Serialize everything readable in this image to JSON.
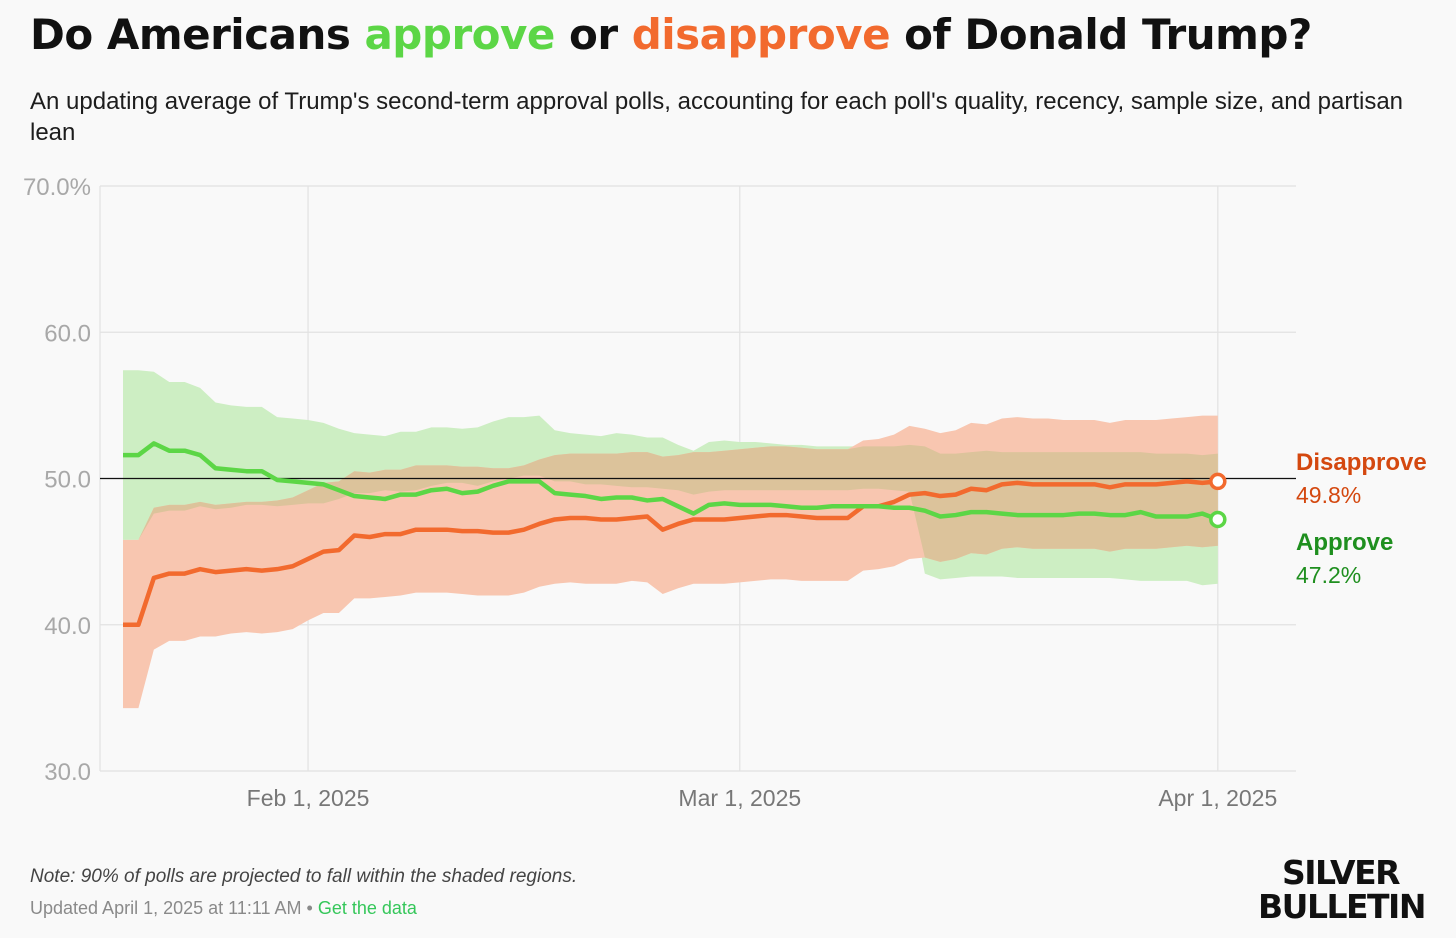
{
  "header": {
    "title_parts": [
      "Do Americans ",
      "approve",
      " or ",
      "disapprove",
      " of Donald Trump?"
    ],
    "subtitle": "An updating average of Trump's second-term approval polls, accounting for each poll's quality, recency, sample size, and partisan lean"
  },
  "footer": {
    "note": "Note: 90% of polls are projected to fall within the shaded regions.",
    "updated": "Updated April 1, 2025 at 11:11 AM",
    "separator": "•",
    "get_data": "Get the data",
    "logo_line1": "SILVER",
    "logo_line2": "BULLETIN"
  },
  "colors": {
    "approve": "#5cd646",
    "approve_label": "#1f8f1f",
    "approve_band": "#cdeec3",
    "disapprove": "#f26a2e",
    "disapprove_label": "#d4480f",
    "disapprove_band": "#f8c6b0",
    "overlap_band": "#dcc39b",
    "background": "#f9f9f9"
  },
  "chart_data": {
    "type": "line",
    "x_dates": [
      "2025-01-20",
      "2025-01-21",
      "2025-01-22",
      "2025-01-23",
      "2025-01-24",
      "2025-01-25",
      "2025-01-26",
      "2025-01-27",
      "2025-01-28",
      "2025-01-29",
      "2025-01-30",
      "2025-01-31",
      "2025-02-01",
      "2025-02-02",
      "2025-02-03",
      "2025-02-04",
      "2025-02-05",
      "2025-02-06",
      "2025-02-07",
      "2025-02-08",
      "2025-02-09",
      "2025-02-10",
      "2025-02-11",
      "2025-02-12",
      "2025-02-13",
      "2025-02-14",
      "2025-02-15",
      "2025-02-16",
      "2025-02-17",
      "2025-02-18",
      "2025-02-19",
      "2025-02-20",
      "2025-02-21",
      "2025-02-22",
      "2025-02-23",
      "2025-02-24",
      "2025-02-25",
      "2025-02-26",
      "2025-02-27",
      "2025-02-28",
      "2025-03-01",
      "2025-03-02",
      "2025-03-03",
      "2025-03-04",
      "2025-03-05",
      "2025-03-06",
      "2025-03-07",
      "2025-03-08",
      "2025-03-09",
      "2025-03-10",
      "2025-03-11",
      "2025-03-12",
      "2025-03-13",
      "2025-03-14",
      "2025-03-15",
      "2025-03-16",
      "2025-03-17",
      "2025-03-18",
      "2025-03-19",
      "2025-03-20",
      "2025-03-21",
      "2025-03-22",
      "2025-03-23",
      "2025-03-24",
      "2025-03-25",
      "2025-03-26",
      "2025-03-27",
      "2025-03-28",
      "2025-03-29",
      "2025-03-30",
      "2025-03-31",
      "2025-04-01"
    ],
    "series": [
      {
        "name": "Approve",
        "values": [
          51.6,
          51.6,
          52.4,
          51.9,
          51.9,
          51.6,
          50.7,
          50.6,
          50.5,
          50.5,
          49.9,
          49.8,
          49.7,
          49.6,
          49.2,
          48.8,
          48.7,
          48.6,
          48.9,
          48.9,
          49.2,
          49.3,
          49.0,
          49.1,
          49.5,
          49.8,
          49.8,
          49.8,
          49.0,
          48.9,
          48.8,
          48.6,
          48.7,
          48.7,
          48.5,
          48.6,
          48.1,
          47.6,
          48.2,
          48.3,
          48.2,
          48.2,
          48.2,
          48.1,
          48.0,
          48.0,
          48.1,
          48.1,
          48.1,
          48.1,
          48.0,
          48.0,
          47.8,
          47.4,
          47.5,
          47.7,
          47.7,
          47.6,
          47.5,
          47.5,
          47.5,
          47.5,
          47.6,
          47.6,
          47.5,
          47.5,
          47.7,
          47.4,
          47.4,
          47.4,
          47.6,
          47.2
        ],
        "lower": [
          45.8,
          45.8,
          47.6,
          47.8,
          47.8,
          48.1,
          47.9,
          48.0,
          48.2,
          48.2,
          48.1,
          48.2,
          48.3,
          48.3,
          48.6,
          49.0,
          49.0,
          49.2,
          49.1,
          49.2,
          49.5,
          49.7,
          49.7,
          49.5,
          49.8,
          50.0,
          50.2,
          50.2,
          49.8,
          49.8,
          49.6,
          49.6,
          49.5,
          49.4,
          49.4,
          49.3,
          49.2,
          48.9,
          49.1,
          49.2,
          49.2,
          49.2,
          49.2,
          49.2,
          49.2,
          49.2,
          49.2,
          49.2,
          49.3,
          49.3,
          49.2,
          49.1,
          43.5,
          43.1,
          43.2,
          43.3,
          43.3,
          43.3,
          43.2,
          43.2,
          43.2,
          43.2,
          43.2,
          43.2,
          43.2,
          43.1,
          43.0,
          43.0,
          43.0,
          43.0,
          42.7,
          42.8
        ],
        "upper": [
          57.4,
          57.4,
          57.3,
          56.6,
          56.6,
          56.2,
          55.2,
          55.0,
          54.9,
          54.9,
          54.2,
          54.1,
          54.0,
          53.8,
          53.4,
          53.1,
          53.0,
          52.9,
          53.2,
          53.2,
          53.5,
          53.5,
          53.4,
          53.5,
          53.9,
          54.2,
          54.2,
          54.3,
          53.3,
          53.1,
          53.0,
          52.9,
          53.1,
          53.0,
          52.8,
          52.8,
          52.3,
          51.9,
          52.5,
          52.6,
          52.5,
          52.5,
          52.4,
          52.3,
          52.3,
          52.2,
          52.2,
          52.2,
          52.2,
          52.2,
          52.2,
          52.3,
          52.2,
          51.7,
          51.7,
          51.8,
          51.9,
          51.8,
          51.8,
          51.8,
          51.8,
          51.8,
          51.8,
          51.8,
          51.8,
          51.8,
          51.8,
          51.7,
          51.7,
          51.7,
          51.6,
          51.7
        ]
      },
      {
        "name": "Disapprove",
        "values": [
          40.0,
          40.0,
          43.2,
          43.5,
          43.5,
          43.8,
          43.6,
          43.7,
          43.8,
          43.7,
          43.8,
          44.0,
          44.5,
          45.0,
          45.1,
          46.1,
          46.0,
          46.2,
          46.2,
          46.5,
          46.5,
          46.5,
          46.4,
          46.4,
          46.3,
          46.3,
          46.5,
          46.9,
          47.2,
          47.3,
          47.3,
          47.2,
          47.2,
          47.3,
          47.4,
          46.5,
          46.9,
          47.2,
          47.2,
          47.2,
          47.3,
          47.4,
          47.5,
          47.5,
          47.4,
          47.3,
          47.3,
          47.3,
          48.1,
          48.1,
          48.4,
          48.9,
          49.0,
          48.8,
          48.9,
          49.3,
          49.2,
          49.6,
          49.7,
          49.6,
          49.6,
          49.6,
          49.6,
          49.6,
          49.4,
          49.6,
          49.6,
          49.6,
          49.7,
          49.8,
          49.7,
          49.8
        ],
        "lower": [
          34.3,
          34.3,
          38.3,
          38.9,
          38.9,
          39.2,
          39.2,
          39.4,
          39.5,
          39.4,
          39.5,
          39.7,
          40.3,
          40.8,
          40.8,
          41.8,
          41.8,
          41.9,
          42.0,
          42.2,
          42.2,
          42.2,
          42.1,
          42.0,
          42.0,
          42.0,
          42.2,
          42.6,
          42.8,
          42.9,
          42.8,
          42.8,
          42.8,
          43.0,
          42.9,
          42.1,
          42.5,
          42.8,
          42.8,
          42.8,
          42.9,
          43.0,
          43.1,
          43.1,
          43.0,
          43.0,
          43.0,
          43.0,
          43.7,
          43.8,
          44.0,
          44.5,
          44.6,
          44.3,
          44.5,
          44.9,
          44.8,
          45.2,
          45.3,
          45.2,
          45.2,
          45.2,
          45.2,
          45.2,
          45.0,
          45.2,
          45.2,
          45.2,
          45.3,
          45.4,
          45.3,
          45.4
        ],
        "upper": [
          45.8,
          45.8,
          48.0,
          48.2,
          48.2,
          48.4,
          48.2,
          48.3,
          48.4,
          48.4,
          48.5,
          48.7,
          49.2,
          49.7,
          49.8,
          50.5,
          50.4,
          50.6,
          50.6,
          50.9,
          50.9,
          50.9,
          50.8,
          50.8,
          50.7,
          50.7,
          50.9,
          51.3,
          51.6,
          51.7,
          51.7,
          51.7,
          51.7,
          51.8,
          51.8,
          51.5,
          51.6,
          51.8,
          51.8,
          51.9,
          52.0,
          52.1,
          52.2,
          52.2,
          52.1,
          52.0,
          52.0,
          52.0,
          52.6,
          52.7,
          53.0,
          53.6,
          53.4,
          53.1,
          53.3,
          53.8,
          53.7,
          54.1,
          54.2,
          54.1,
          54.1,
          54.0,
          54.0,
          54.0,
          53.8,
          54.0,
          54.0,
          54.0,
          54.1,
          54.2,
          54.3,
          54.3
        ]
      }
    ],
    "y_ticks": [
      "30.0",
      "40.0",
      "50.0",
      "60.0",
      "70.0%"
    ],
    "y_tick_values": [
      30,
      40,
      50,
      60,
      70
    ],
    "ylim": [
      30,
      70
    ],
    "x_ticks": [
      {
        "date": "2025-02-01",
        "label": "Feb 1, 2025"
      },
      {
        "date": "2025-03-01",
        "label": "Mar 1, 2025"
      },
      {
        "date": "2025-04-01",
        "label": "Apr 1, 2025"
      }
    ],
    "reference_line": 50,
    "end_labels": [
      {
        "name": "Disapprove",
        "value_label": "49.8%"
      },
      {
        "name": "Approve",
        "value_label": "47.2%"
      }
    ],
    "grid": true,
    "legend": "end-of-line labels, right"
  }
}
